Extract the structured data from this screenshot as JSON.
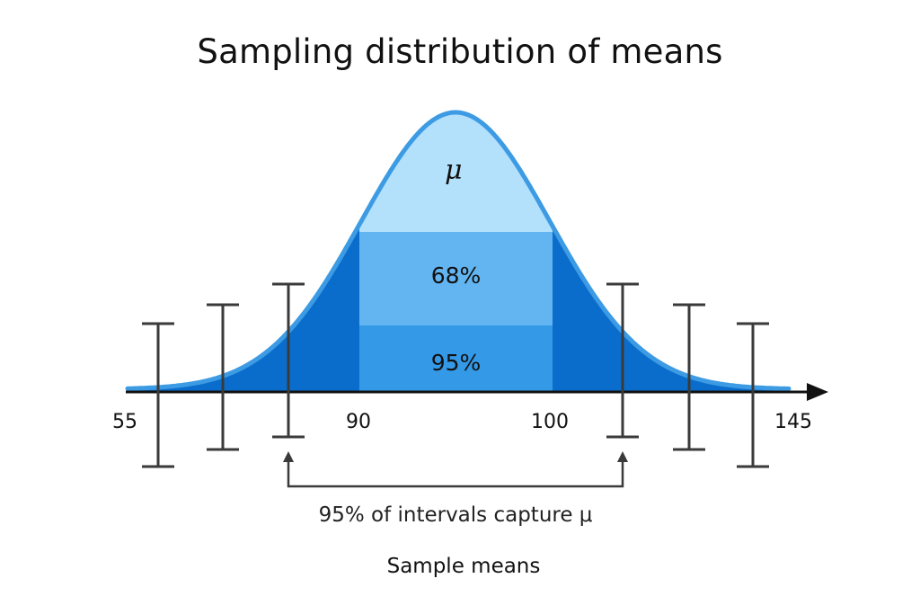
{
  "title": "Sampling distribution of means",
  "colors": {
    "outer_tail": "#0a6dcc",
    "band_95": "#3499e6",
    "band_68": "#62b5f0",
    "cap_region": "#b3e0fb",
    "curve_stroke": "#3d9be4",
    "axis": "#111111",
    "interval": "#3a3a3a"
  },
  "chart_data": {
    "type": "diagram",
    "title": "Sampling distribution of means",
    "xlabel": "Sample means",
    "distribution": "normal",
    "center_label": "μ",
    "bands": [
      {
        "label": "68%",
        "from": 90,
        "to": 100
      },
      {
        "label": "95%",
        "from": 90,
        "to": 100
      }
    ],
    "x_tick_labels": [
      "55",
      "90",
      "100",
      "145"
    ],
    "confidence_intervals": [
      {
        "position": "far-left",
        "captures_mu": false
      },
      {
        "position": "left",
        "captures_mu": false
      },
      {
        "position": "inner-left",
        "captures_mu": true
      },
      {
        "position": "inner-right",
        "captures_mu": true
      },
      {
        "position": "right",
        "captures_mu": false
      },
      {
        "position": "far-right",
        "captures_mu": false
      }
    ],
    "annotation": "95% of intervals capture μ"
  },
  "labels": {
    "mu": "μ",
    "band_68": "68%",
    "band_95": "95%",
    "tick_55": "55",
    "tick_90": "90",
    "tick_100": "100",
    "tick_145": "145",
    "annotation": "95% of intervals capture μ",
    "xlabel": "Sample means"
  }
}
